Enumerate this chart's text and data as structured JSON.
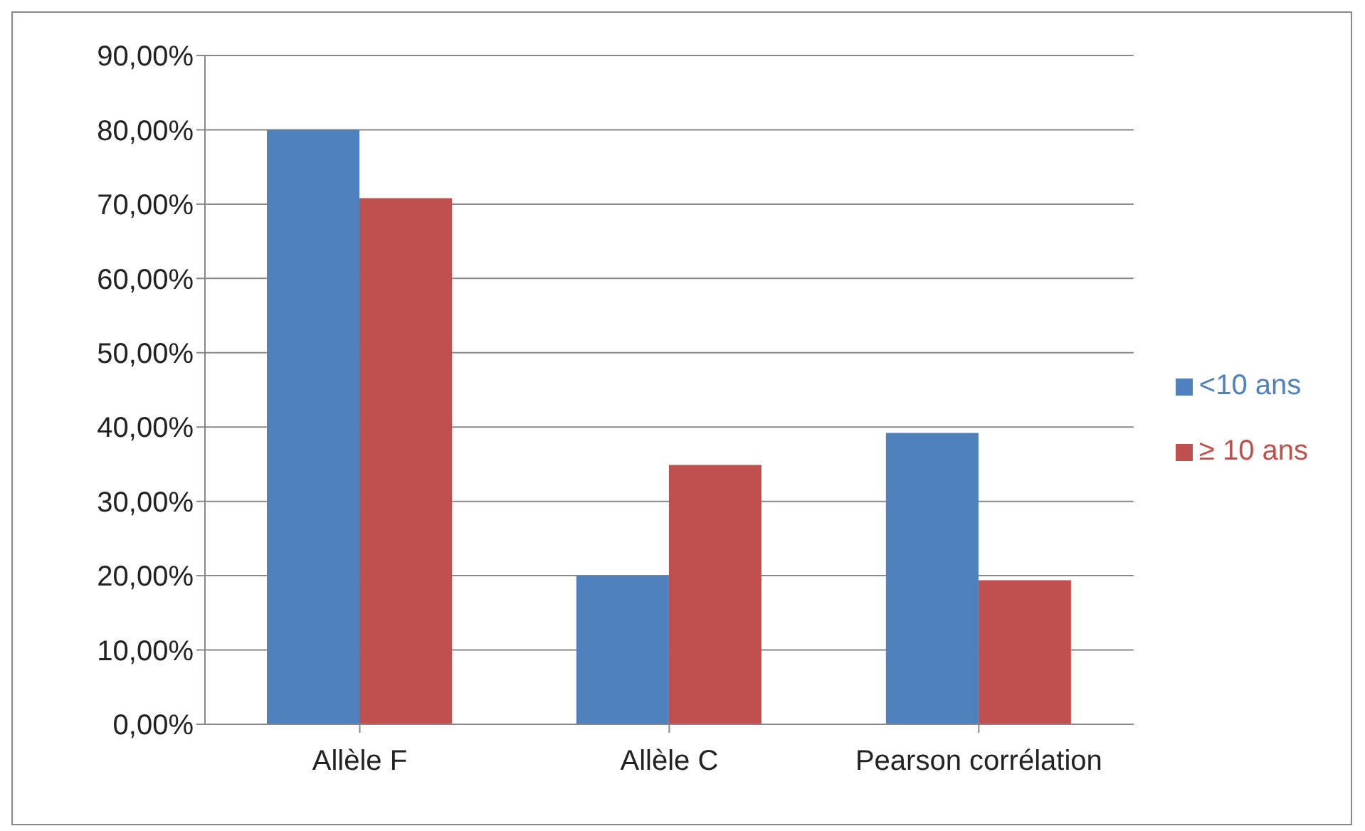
{
  "chart_data": {
    "type": "bar",
    "categories": [
      "Allèle F",
      "Allèle C",
      "Pearson corrélation"
    ],
    "series": [
      {
        "name": "<10 ans",
        "color": "#4f81bd",
        "values": [
          80.0,
          20.0,
          39.2
        ]
      },
      {
        "name": "≥ 10 ans",
        "color": "#c0504d",
        "values": [
          70.8,
          34.9,
          19.4
        ]
      }
    ],
    "ylim": [
      0,
      90
    ],
    "yticks": [
      {
        "value": 0,
        "label": "0,00%"
      },
      {
        "value": 10,
        "label": "10,00%"
      },
      {
        "value": 20,
        "label": "20,00%"
      },
      {
        "value": 30,
        "label": "30,00%"
      },
      {
        "value": 40,
        "label": "40,00%"
      },
      {
        "value": 50,
        "label": "50,00%"
      },
      {
        "value": 60,
        "label": "60,00%"
      },
      {
        "value": 70,
        "label": "70,00%"
      },
      {
        "value": 80,
        "label": "80,00%"
      },
      {
        "value": 90,
        "label": "90,00%"
      }
    ],
    "grid": "y",
    "legend": "right"
  }
}
